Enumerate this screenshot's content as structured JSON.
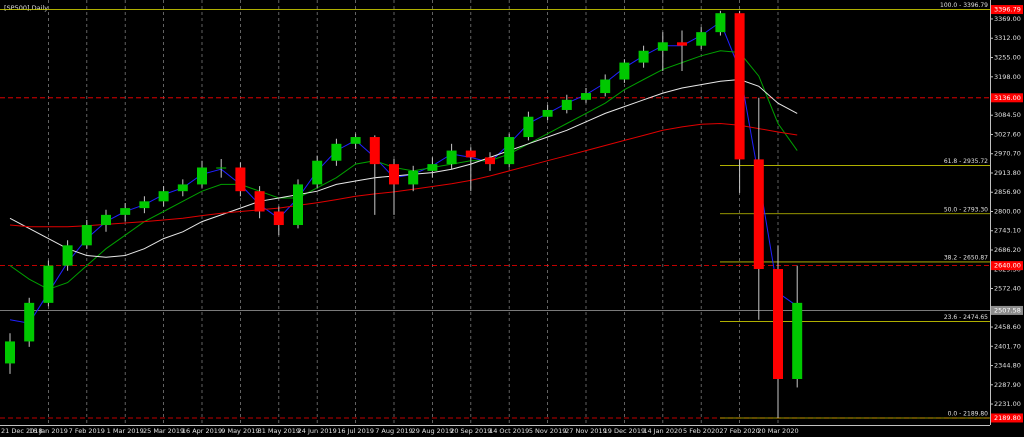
{
  "chart_data": {
    "type": "candlestick",
    "title": "[SP500],Daily",
    "background": "#000000",
    "bull_color": "#00c800",
    "bear_color": "#ff0000",
    "wick_color": "#c8c8c8",
    "grid": true,
    "categories": [
      "21 Dec 2018",
      null,
      "16 Jan 2019",
      null,
      "7 Feb 2019",
      null,
      "1 Mar 2019",
      null,
      "25 Mar 2019",
      null,
      "16 Apr 2019",
      null,
      "9 May 2019",
      null,
      "31 May 2019",
      null,
      "24 Jun 2019",
      null,
      "16 Jul 2019",
      null,
      "7 Aug 2019",
      null,
      "29 Aug 2019",
      null,
      "20 Sep 2019",
      null,
      "14 Oct 2019",
      null,
      "5 Nov 2019",
      null,
      "27 Nov 2019",
      null,
      "19 Dec 2019",
      null,
      "14 Jan 2020",
      null,
      "5 Feb 2020",
      null,
      "27 Feb 2020",
      null,
      "20 Mar 2020",
      null
    ],
    "candles": [
      {
        "open": 2351,
        "high": 2440,
        "low": 2320,
        "close": 2416
      },
      {
        "open": 2416,
        "high": 2545,
        "low": 2400,
        "close": 2530
      },
      {
        "open": 2530,
        "high": 2655,
        "low": 2520,
        "close": 2640
      },
      {
        "open": 2640,
        "high": 2715,
        "low": 2625,
        "close": 2700
      },
      {
        "open": 2700,
        "high": 2775,
        "low": 2690,
        "close": 2760
      },
      {
        "open": 2760,
        "high": 2805,
        "low": 2740,
        "close": 2790
      },
      {
        "open": 2790,
        "high": 2825,
        "low": 2770,
        "close": 2810
      },
      {
        "open": 2810,
        "high": 2845,
        "low": 2795,
        "close": 2830
      },
      {
        "open": 2830,
        "high": 2875,
        "low": 2815,
        "close": 2860
      },
      {
        "open": 2860,
        "high": 2895,
        "low": 2845,
        "close": 2880
      },
      {
        "open": 2880,
        "high": 2950,
        "low": 2870,
        "close": 2930
      },
      {
        "open": 2930,
        "high": 2955,
        "low": 2900,
        "close": 2930
      },
      {
        "open": 2930,
        "high": 2945,
        "low": 2845,
        "close": 2860
      },
      {
        "open": 2860,
        "high": 2875,
        "low": 2780,
        "close": 2800
      },
      {
        "open": 2800,
        "high": 2815,
        "low": 2730,
        "close": 2760
      },
      {
        "open": 2760,
        "high": 2895,
        "low": 2750,
        "close": 2880
      },
      {
        "open": 2880,
        "high": 2965,
        "low": 2870,
        "close": 2950
      },
      {
        "open": 2950,
        "high": 3015,
        "low": 2935,
        "close": 3000
      },
      {
        "open": 3000,
        "high": 3030,
        "low": 2985,
        "close": 3020
      },
      {
        "open": 3020,
        "high": 3025,
        "low": 2790,
        "close": 2940
      },
      {
        "open": 2940,
        "high": 2955,
        "low": 2790,
        "close": 2880
      },
      {
        "open": 2880,
        "high": 2935,
        "low": 2860,
        "close": 2920
      },
      {
        "open": 2920,
        "high": 2960,
        "low": 2900,
        "close": 2940
      },
      {
        "open": 2940,
        "high": 3000,
        "low": 2925,
        "close": 2980
      },
      {
        "open": 2980,
        "high": 2990,
        "low": 2860,
        "close": 2960
      },
      {
        "open": 2960,
        "high": 2975,
        "low": 2920,
        "close": 2940
      },
      {
        "open": 2940,
        "high": 3030,
        "low": 2930,
        "close": 3020
      },
      {
        "open": 3020,
        "high": 3095,
        "low": 3010,
        "close": 3080
      },
      {
        "open": 3080,
        "high": 3115,
        "low": 3070,
        "close": 3100
      },
      {
        "open": 3100,
        "high": 3145,
        "low": 3090,
        "close": 3130
      },
      {
        "open": 3130,
        "high": 3165,
        "low": 3120,
        "close": 3150
      },
      {
        "open": 3150,
        "high": 3205,
        "low": 3140,
        "close": 3190
      },
      {
        "open": 3190,
        "high": 3250,
        "low": 3180,
        "close": 3240
      },
      {
        "open": 3240,
        "high": 3290,
        "low": 3225,
        "close": 3275
      },
      {
        "open": 3275,
        "high": 3330,
        "low": 3215,
        "close": 3300
      },
      {
        "open": 3300,
        "high": 3335,
        "low": 3215,
        "close": 3290
      },
      {
        "open": 3290,
        "high": 3345,
        "low": 3280,
        "close": 3330
      },
      {
        "open": 3330,
        "high": 3393,
        "low": 3320,
        "close": 3386
      },
      {
        "open": 3386,
        "high": 3393,
        "low": 2855,
        "close": 2954
      },
      {
        "open": 2954,
        "high": 3136,
        "low": 2480,
        "close": 2630
      },
      {
        "open": 2630,
        "high": 2700,
        "low": 2189.8,
        "close": 2305
      },
      {
        "open": 2305,
        "high": 2640,
        "low": 2280,
        "close": 2530
      }
    ],
    "moving_averages": [
      {
        "color": "#2020ff",
        "values": [
          2480,
          2470,
          2560,
          2650,
          2720,
          2770,
          2800,
          2820,
          2850,
          2870,
          2910,
          2925,
          2880,
          2820,
          2780,
          2840,
          2920,
          2980,
          3010,
          2960,
          2900,
          2910,
          2935,
          2970,
          2960,
          2945,
          3000,
          3060,
          3090,
          3120,
          3145,
          3180,
          3225,
          3260,
          3290,
          3290,
          3320,
          3360,
          3220,
          2900,
          2560,
          2520
        ]
      },
      {
        "color": "#00a000",
        "values": [
          2640,
          2600,
          2570,
          2590,
          2640,
          2690,
          2730,
          2770,
          2800,
          2830,
          2860,
          2880,
          2880,
          2860,
          2840,
          2840,
          2870,
          2900,
          2940,
          2950,
          2930,
          2920,
          2930,
          2940,
          2950,
          2950,
          2970,
          3000,
          3030,
          3060,
          3090,
          3120,
          3160,
          3190,
          3220,
          3240,
          3260,
          3275,
          3270,
          3200,
          3060,
          2980
        ]
      },
      {
        "color": "#e8e8e8",
        "values": [
          2780,
          2750,
          2720,
          2690,
          2670,
          2665,
          2670,
          2690,
          2720,
          2740,
          2770,
          2790,
          2810,
          2830,
          2840,
          2850,
          2860,
          2880,
          2890,
          2900,
          2905,
          2910,
          2915,
          2925,
          2940,
          2960,
          2980,
          3000,
          3020,
          3040,
          3065,
          3090,
          3110,
          3130,
          3150,
          3165,
          3175,
          3185,
          3190,
          3170,
          3120,
          3090
        ]
      },
      {
        "color": "#e00000",
        "values": [
          2760,
          2755,
          2755,
          2755,
          2758,
          2762,
          2766,
          2770,
          2775,
          2780,
          2788,
          2795,
          2800,
          2805,
          2810,
          2818,
          2826,
          2835,
          2845,
          2852,
          2858,
          2866,
          2874,
          2882,
          2892,
          2905,
          2920,
          2935,
          2950,
          2965,
          2980,
          2995,
          3010,
          3025,
          3040,
          3050,
          3058,
          3060,
          3055,
          3045,
          3035,
          3026
        ]
      }
    ],
    "ylim": [
      2172,
      3425
    ],
    "yticks": [
      {
        "value": 3369,
        "label": "3369.00"
      },
      {
        "value": 3312,
        "label": "3312.00"
      },
      {
        "value": 3255,
        "label": "3255.00"
      },
      {
        "value": 3198,
        "label": "3198.00"
      },
      {
        "value": 3084.5,
        "label": "3084.50"
      },
      {
        "value": 3027.6,
        "label": "3027.60"
      },
      {
        "value": 2970.7,
        "label": "2970.70"
      },
      {
        "value": 2913.8,
        "label": "2913.80"
      },
      {
        "value": 2856.9,
        "label": "2856.90"
      },
      {
        "value": 2800,
        "label": "2800.00"
      },
      {
        "value": 2743.1,
        "label": "2743.10"
      },
      {
        "value": 2686.2,
        "label": "2686.20"
      },
      {
        "value": 2629.3,
        "label": "2629.30"
      },
      {
        "value": 2572.4,
        "label": "2572.40"
      },
      {
        "value": 2458.6,
        "label": "2458.60"
      },
      {
        "value": 2401.7,
        "label": "2401.70"
      },
      {
        "value": 2344.8,
        "label": "2344.80"
      },
      {
        "value": 2287.9,
        "label": "2287.90"
      },
      {
        "value": 2231,
        "label": "2231.00"
      }
    ],
    "fib_color": "#c8c800",
    "fib_levels": [
      {
        "value": 3396.79,
        "label": "100.0 - 3396.79"
      },
      {
        "value": 2935.72,
        "label": "61.8 - 2935.72"
      },
      {
        "value": 2793.3,
        "label": "50.0 - 2793.30"
      },
      {
        "value": 2650.87,
        "label": "38.2 - 2650.87"
      },
      {
        "value": 2474.65,
        "label": "23.6 - 2474.65"
      },
      {
        "value": 2189.8,
        "label": "0.0 - 2189.80"
      }
    ],
    "price_lines": [
      {
        "value": 3396.79,
        "label": "3396.79",
        "color": "#ff0000"
      },
      {
        "value": 3136,
        "label": "3136.00",
        "color": "#ff0000"
      },
      {
        "value": 2640,
        "label": "2640.00",
        "color": "#ff0000"
      },
      {
        "value": 2507.58,
        "label": "2507.58",
        "color": "#8c8c8c"
      },
      {
        "value": 2189.8,
        "label": "2189.80",
        "color": "#ff0000"
      }
    ]
  }
}
